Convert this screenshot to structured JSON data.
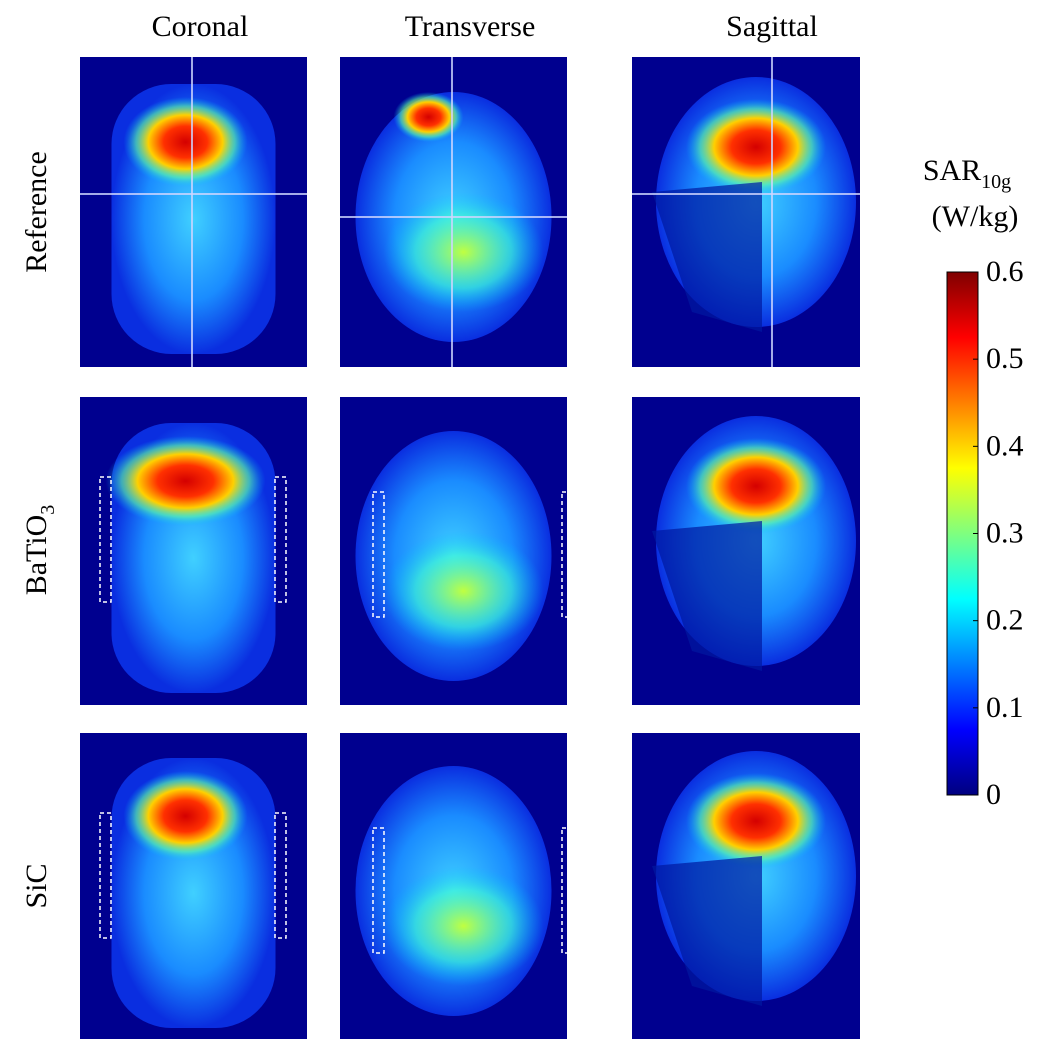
{
  "columns": [
    "Coronal",
    "Transverse",
    "Sagittal"
  ],
  "rows": [
    {
      "label": "Reference"
    },
    {
      "label": "BaTiO",
      "sub": "3"
    },
    {
      "label": "SiC"
    }
  ],
  "colorbar": {
    "title": "SAR",
    "title_sub": "10g",
    "unit": "(W/kg)",
    "lim": [
      0,
      0.6
    ],
    "ticks": [
      0,
      0.1,
      0.2,
      0.3,
      0.4,
      0.5,
      0.6
    ]
  }
}
